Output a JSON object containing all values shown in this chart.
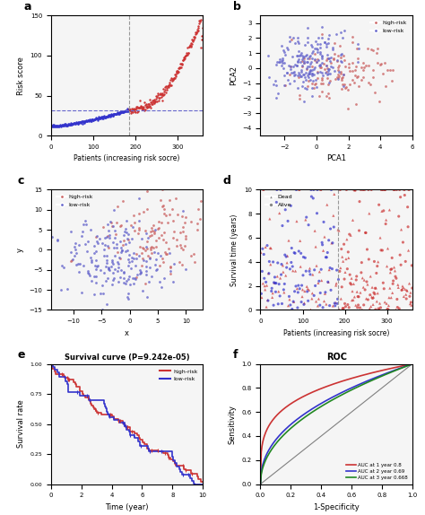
{
  "fig_width": 4.74,
  "fig_height": 5.74,
  "dpi": 100,
  "panel_a": {
    "n_patients": 360,
    "cutoff_x": 185,
    "cutoff_y": 32,
    "ylim": [
      0,
      150
    ],
    "xlim": [
      0,
      360
    ],
    "xlabel": "Patients (increasing risk socre)",
    "ylabel": "Risk score",
    "color_low": "#3333cc",
    "color_high": "#cc3333",
    "hline_color": "#6666cc",
    "vline_color": "#999999"
  },
  "panel_b": {
    "n_high": 130,
    "n_low": 200,
    "xlim": [
      -3.5,
      6.0
    ],
    "ylim": [
      -4.5,
      3.5
    ],
    "xlabel": "PCA1",
    "ylabel": "PCA2",
    "color_high": "#cc6666",
    "color_low": "#6666cc"
  },
  "panel_c": {
    "n_high": 130,
    "n_low": 200,
    "xlim": [
      -14,
      13
    ],
    "ylim": [
      -15,
      15
    ],
    "xlabel": "x",
    "ylabel": "y",
    "color_high": "#cc6666",
    "color_low": "#6666cc"
  },
  "panel_d": {
    "n_patients": 360,
    "cutoff_x": 185,
    "ylim": [
      0,
      10
    ],
    "xlim": [
      0,
      360
    ],
    "xlabel": "Patients (increasing risk socre)",
    "ylabel": "Survival time (years)",
    "color_dead_high": "#cc3333",
    "color_dead_low": "#cc3333",
    "color_alive_high": "#cc3333",
    "color_alive_low": "#3333cc",
    "vline_color": "#999999"
  },
  "panel_e": {
    "title": "Survival curve (P=9.242e-05)",
    "xlabel": "Time (year)",
    "ylabel": "Survival rate",
    "xlim": [
      0,
      10
    ],
    "ylim": [
      0,
      1.0
    ],
    "color_high": "#cc3333",
    "color_low": "#3333cc"
  },
  "panel_f": {
    "title": "ROC",
    "xlabel": "1-Specificity",
    "ylabel": "Sensitivity",
    "xlim": [
      0,
      1
    ],
    "ylim": [
      0,
      1
    ],
    "auc1": 0.8,
    "auc2": 0.69,
    "auc3": 0.668,
    "color_1yr": "#cc3333",
    "color_2yr": "#3333cc",
    "color_3yr": "#228822"
  },
  "panel_bg": "#f5f5f5"
}
